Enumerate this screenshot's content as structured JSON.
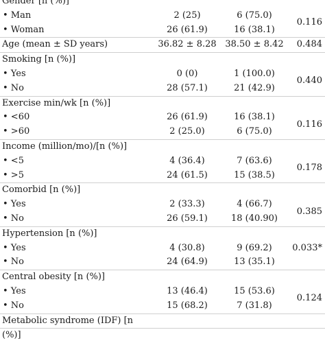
{
  "rows": [
    {
      "kind": "header",
      "label": "Gender [n (%)]",
      "c1": "",
      "c2": "",
      "p": ""
    },
    {
      "kind": "sub",
      "label": "• Man",
      "c1": "2 (25)",
      "c2": "6 (75.0)",
      "p": "0.116",
      "p_between": true
    },
    {
      "kind": "sub",
      "label": "• Woman",
      "c1": "26 (61.9)",
      "c2": "16 (38.1)",
      "p": ""
    },
    {
      "kind": "header",
      "label": "Age (mean ± SD years)",
      "c1": "36.82 ± 8.28",
      "c2": "38.50 ± 8.42",
      "p": "0.484"
    },
    {
      "kind": "header",
      "label": "Smoking [n (%)]",
      "c1": "",
      "c2": "",
      "p": ""
    },
    {
      "kind": "sub",
      "label": "• Yes",
      "c1": "0 (0)",
      "c2": "1 (100.0)",
      "p": "0.440",
      "p_between": true
    },
    {
      "kind": "sub",
      "label": "• No",
      "c1": "28 (57.1)",
      "c2": "21 (42.9)",
      "p": ""
    },
    {
      "kind": "header",
      "label": "Exercise min/wk [n (%)]",
      "c1": "",
      "c2": "",
      "p": ""
    },
    {
      "kind": "sub",
      "label": "• <60",
      "c1": "26 (61.9)",
      "c2": "16 (38.1)",
      "p": "0.116",
      "p_between": true
    },
    {
      "kind": "sub",
      "label": "• >60",
      "c1": "2 (25.0)",
      "c2": "6 (75.0)",
      "p": ""
    },
    {
      "kind": "header",
      "label": "Income (million/mo)/[n (%)]",
      "c1": "",
      "c2": "",
      "p": ""
    },
    {
      "kind": "sub",
      "label": "• <5",
      "c1": "4 (36.4)",
      "c2": "7 (63.6)",
      "p": "0.178",
      "p_between": true
    },
    {
      "kind": "sub",
      "label": "• >5",
      "c1": "24 (61.5)",
      "c2": "15 (38.5)",
      "p": ""
    },
    {
      "kind": "header",
      "label": "Comorbid [n (%)]",
      "c1": "",
      "c2": "",
      "p": ""
    },
    {
      "kind": "sub",
      "label": "• Yes",
      "c1": "2 (33.3)",
      "c2": "4 (66.7)",
      "p": "0.385",
      "p_between": true
    },
    {
      "kind": "sub",
      "label": "• No",
      "c1": "26 (59.1)",
      "c2": "18 (40.90)",
      "p": ""
    },
    {
      "kind": "header",
      "label": "Hypertension [n (%)]",
      "c1": "",
      "c2": "",
      "p": ""
    },
    {
      "kind": "sub",
      "label": "• Yes",
      "c1": "4 (30.8)",
      "c2": "9 (69.2)",
      "p": "0.033*"
    },
    {
      "kind": "sub",
      "label": "• No",
      "c1": "24 (64.9)",
      "c2": "13 (35.1)",
      "p": ""
    },
    {
      "kind": "header",
      "label": "Central obesity [n (%)]",
      "c1": "",
      "c2": "",
      "p": ""
    },
    {
      "kind": "sub",
      "label": "• Yes",
      "c1": "13 (46.4)",
      "c2": "15 (53.6)",
      "p": "0.124",
      "p_between": true
    },
    {
      "kind": "sub",
      "label": "• No",
      "c1": "15 (68.2)",
      "c2": "7 (31.8)",
      "p": ""
    },
    {
      "kind": "header",
      "label": "Metabolic syndrome (IDF) [n",
      "c1": "",
      "c2": "",
      "p": ""
    },
    {
      "kind": "header",
      "label": "(%)]",
      "c1": "",
      "c2": "",
      "p": ""
    }
  ]
}
